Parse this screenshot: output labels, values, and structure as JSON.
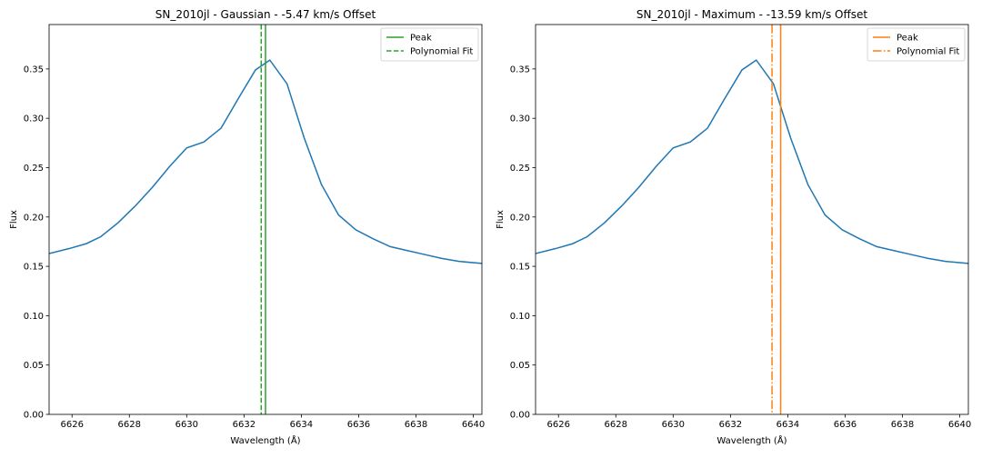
{
  "chart_data": [
    {
      "type": "line",
      "title": "SN_2010jl - Gaussian - -5.47 km/s Offset",
      "xlabel": "Wavelength (Å)",
      "ylabel": "Flux",
      "xlim": [
        6625.2,
        6640.3
      ],
      "ylim": [
        0.0,
        0.395
      ],
      "xticks": [
        "6626",
        "6628",
        "6630",
        "6632",
        "6634",
        "6636",
        "6638",
        "6640"
      ],
      "yticks": [
        "0.00",
        "0.05",
        "0.10",
        "0.15",
        "0.20",
        "0.25",
        "0.30",
        "0.35"
      ],
      "legend_position": "top-right",
      "series": [
        {
          "color": "#1f77b4",
          "x": [
            6625.2,
            6625.9,
            6626.5,
            6627.0,
            6627.6,
            6628.2,
            6628.8,
            6629.4,
            6630.0,
            6630.6,
            6631.2,
            6631.8,
            6632.4,
            6632.9,
            6633.5,
            6634.1,
            6634.7,
            6635.3,
            6635.9,
            6636.5,
            6637.1,
            6637.7,
            6638.3,
            6638.9,
            6639.5,
            6640.3
          ],
          "y": [
            0.163,
            0.168,
            0.173,
            0.18,
            0.194,
            0.211,
            0.23,
            0.251,
            0.27,
            0.276,
            0.29,
            0.32,
            0.349,
            0.359,
            0.335,
            0.28,
            0.233,
            0.202,
            0.187,
            0.178,
            0.17,
            0.166,
            0.162,
            0.158,
            0.155,
            0.153
          ]
        }
      ],
      "vlines": [
        {
          "name": "Peak",
          "x": 6632.75,
          "color": "#2ca02c",
          "style": "solid"
        },
        {
          "name": "Polynomial Fit",
          "x": 6632.6,
          "color": "#2ca02c",
          "style": "dashed"
        }
      ]
    },
    {
      "type": "line",
      "title": "SN_2010jl - Maximum - -13.59 km/s Offset",
      "xlabel": "Wavelength (Å)",
      "ylabel": "Flux",
      "xlim": [
        6625.2,
        6640.3
      ],
      "ylim": [
        0.0,
        0.395
      ],
      "xticks": [
        "6626",
        "6628",
        "6630",
        "6632",
        "6634",
        "6636",
        "6638",
        "6640"
      ],
      "yticks": [
        "0.00",
        "0.05",
        "0.10",
        "0.15",
        "0.20",
        "0.25",
        "0.30",
        "0.35"
      ],
      "legend_position": "top-right",
      "series": [
        {
          "color": "#1f77b4",
          "x": [
            6625.2,
            6625.9,
            6626.5,
            6627.0,
            6627.6,
            6628.2,
            6628.8,
            6629.4,
            6630.0,
            6630.6,
            6631.2,
            6631.8,
            6632.4,
            6632.9,
            6633.5,
            6634.1,
            6634.7,
            6635.3,
            6635.9,
            6636.5,
            6637.1,
            6637.7,
            6638.3,
            6638.9,
            6639.5,
            6640.3
          ],
          "y": [
            0.163,
            0.168,
            0.173,
            0.18,
            0.194,
            0.211,
            0.23,
            0.251,
            0.27,
            0.276,
            0.29,
            0.32,
            0.349,
            0.359,
            0.335,
            0.28,
            0.233,
            0.202,
            0.187,
            0.178,
            0.17,
            0.166,
            0.162,
            0.158,
            0.155,
            0.153
          ]
        }
      ],
      "vlines": [
        {
          "name": "Peak",
          "x": 6633.75,
          "color": "#ff7f0e",
          "style": "solid"
        },
        {
          "name": "Polynomial Fit",
          "x": 6633.45,
          "color": "#ff7f0e",
          "style": "dashdot"
        }
      ]
    }
  ]
}
